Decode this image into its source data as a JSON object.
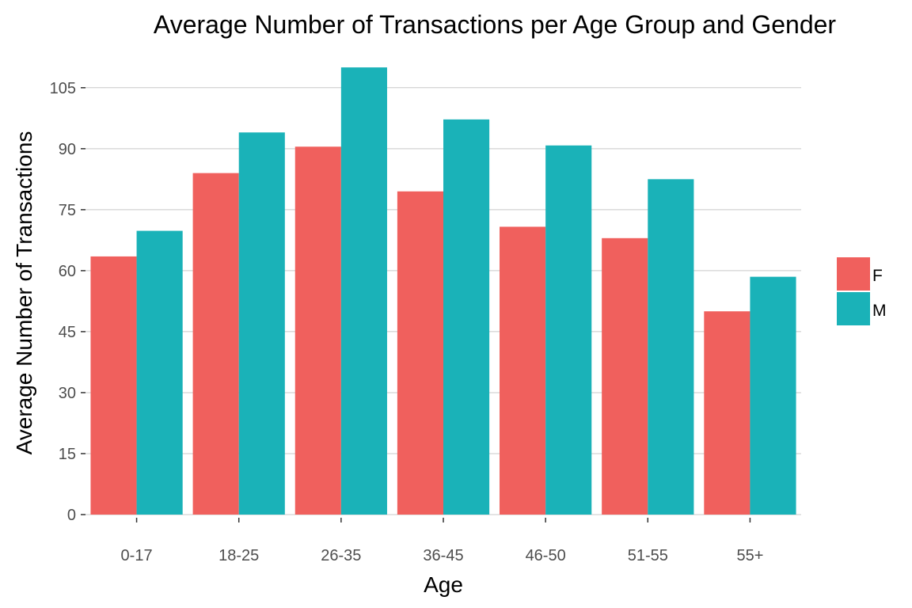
{
  "chart_data": {
    "type": "bar",
    "title": "Average Number of Transactions per Age Group and Gender",
    "xlabel": "Age",
    "ylabel": "Average Number of Transactions",
    "categories": [
      "0-17",
      "18-25",
      "26-35",
      "36-45",
      "46-50",
      "51-55",
      "55+"
    ],
    "series": [
      {
        "name": "F",
        "color": "#F0605D",
        "values": [
          63.5,
          84,
          90.5,
          79.5,
          70.8,
          68,
          50
        ]
      },
      {
        "name": "M",
        "color": "#1AB2B8",
        "values": [
          69.8,
          94,
          110,
          97.2,
          90.8,
          82.5,
          58.5
        ]
      }
    ],
    "ylim": [
      0,
      111
    ],
    "yticks": [
      0,
      15,
      30,
      45,
      60,
      75,
      90,
      105
    ],
    "grid": true,
    "legend_position": "right"
  }
}
